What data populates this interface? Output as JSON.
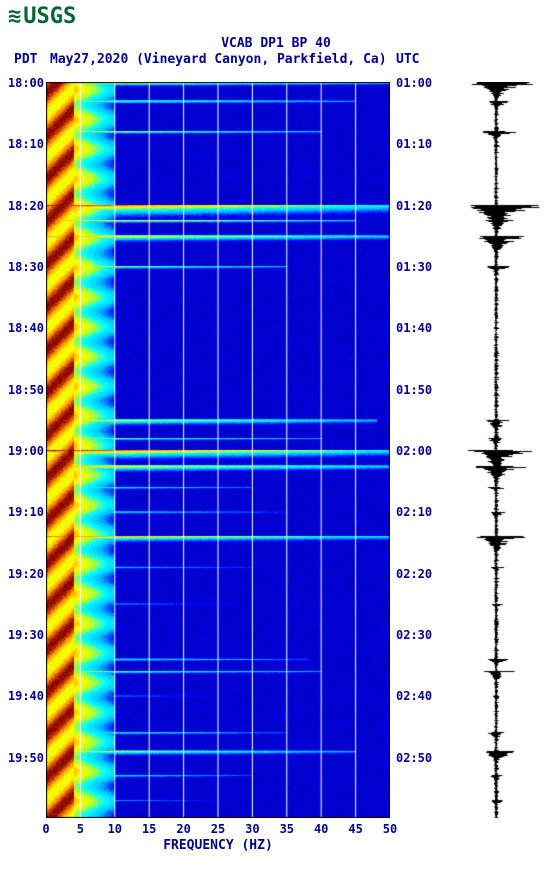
{
  "logo_text": "USGS",
  "title_line1": "VCAB DP1 BP 40",
  "subtitle": {
    "tz_left": "PDT",
    "date_loc": "May27,2020 (Vineyard Canyon, Parkfield, Ca)",
    "tz_right": "UTC"
  },
  "y_left_ticks": [
    "18:00",
    "18:10",
    "18:20",
    "18:30",
    "18:40",
    "18:50",
    "19:00",
    "19:10",
    "19:20",
    "19:30",
    "19:40",
    "19:50"
  ],
  "y_right_ticks": [
    "01:00",
    "01:10",
    "01:20",
    "01:30",
    "01:40",
    "01:50",
    "02:00",
    "02:10",
    "02:20",
    "02:30",
    "02:40",
    "02:50"
  ],
  "x_ticks": [
    "0",
    "5",
    "10",
    "15",
    "20",
    "25",
    "30",
    "35",
    "40",
    "45",
    "50"
  ],
  "x_label": "FREQUENCY (HZ)",
  "spectrogram": {
    "type": "spectrogram-heatmap",
    "freq_min_hz": 0,
    "freq_max_hz": 50,
    "time_start_pdt": "18:00",
    "time_end_pdt": "20:00",
    "grid_freqs_hz": [
      5,
      10,
      15,
      20,
      25,
      30,
      35,
      40,
      45
    ],
    "background_color": "#00008b",
    "colormap_stops": [
      {
        "v": 0.0,
        "c": "#00008b"
      },
      {
        "v": 0.2,
        "c": "#0000ff"
      },
      {
        "v": 0.35,
        "c": "#00bfff"
      },
      {
        "v": 0.5,
        "c": "#00ffff"
      },
      {
        "v": 0.6,
        "c": "#adff2f"
      },
      {
        "v": 0.72,
        "c": "#ffff00"
      },
      {
        "v": 0.85,
        "c": "#ff8c00"
      },
      {
        "v": 1.0,
        "c": "#8b0000"
      }
    ],
    "low_freq_band": {
      "freq_range_hz": [
        0,
        4
      ],
      "intensity": 0.95,
      "note": "persistent high energy band (red/orange) across full time range"
    },
    "mid_taper": {
      "freq_range_hz": [
        4,
        10
      ],
      "intensity_start": 0.7,
      "intensity_end": 0.3,
      "note": "yellow-cyan taper"
    },
    "broadband_events": [
      {
        "t_min": 0.0051,
        "width_min": 0.6,
        "max_intensity": 0.95,
        "freq_extent_hz": 50
      },
      {
        "t_min": 3.0,
        "width_min": 0.5,
        "max_intensity": 0.8,
        "freq_extent_hz": 45
      },
      {
        "t_min": 8.0,
        "width_min": 0.5,
        "max_intensity": 0.75,
        "freq_extent_hz": 40
      },
      {
        "t_min": 20.0,
        "width_min": 2.0,
        "max_intensity": 1.0,
        "freq_extent_hz": 50
      },
      {
        "t_min": 22.5,
        "width_min": 0.5,
        "max_intensity": 0.8,
        "freq_extent_hz": 45
      },
      {
        "t_min": 25.0,
        "width_min": 1.0,
        "max_intensity": 0.95,
        "freq_extent_hz": 50
      },
      {
        "t_min": 30.0,
        "width_min": 0.6,
        "max_intensity": 0.7,
        "freq_extent_hz": 35
      },
      {
        "t_min": 55.0,
        "width_min": 1.0,
        "max_intensity": 0.85,
        "freq_extent_hz": 48
      },
      {
        "t_min": 58.0,
        "width_min": 0.5,
        "max_intensity": 0.7,
        "freq_extent_hz": 40
      },
      {
        "t_min": 60.0,
        "width_min": 1.5,
        "max_intensity": 0.98,
        "freq_extent_hz": 50
      },
      {
        "t_min": 62.5,
        "width_min": 1.0,
        "max_intensity": 0.95,
        "freq_extent_hz": 50
      },
      {
        "t_min": 66.0,
        "width_min": 0.5,
        "max_intensity": 0.6,
        "freq_extent_hz": 30
      },
      {
        "t_min": 70.0,
        "width_min": 0.5,
        "max_intensity": 0.6,
        "freq_extent_hz": 35
      },
      {
        "t_min": 74.0,
        "width_min": 1.0,
        "max_intensity": 0.9,
        "freq_extent_hz": 50
      },
      {
        "t_min": 79.0,
        "width_min": 0.5,
        "max_intensity": 0.55,
        "freq_extent_hz": 30
      },
      {
        "t_min": 85.0,
        "width_min": 0.4,
        "max_intensity": 0.5,
        "freq_extent_hz": 28
      },
      {
        "t_min": 94.0,
        "width_min": 0.5,
        "max_intensity": 0.65,
        "freq_extent_hz": 38
      },
      {
        "t_min": 96.0,
        "width_min": 0.5,
        "max_intensity": 0.7,
        "freq_extent_hz": 40
      },
      {
        "t_min": 100.0,
        "width_min": 0.4,
        "max_intensity": 0.5,
        "freq_extent_hz": 25
      },
      {
        "t_min": 106.0,
        "width_min": 0.5,
        "max_intensity": 0.6,
        "freq_extent_hz": 35
      },
      {
        "t_min": 109.0,
        "width_min": 0.8,
        "max_intensity": 0.8,
        "freq_extent_hz": 45
      },
      {
        "t_min": 113.0,
        "width_min": 0.5,
        "max_intensity": 0.55,
        "freq_extent_hz": 30
      },
      {
        "t_min": 117.0,
        "width_min": 0.4,
        "max_intensity": 0.5,
        "freq_extent_hz": 25
      }
    ],
    "time_span_minutes": 120
  },
  "waveform": {
    "type": "seismogram",
    "color": "#000000",
    "time_span_minutes": 120,
    "background_color": "#ffffff",
    "baseline_amplitude": 0.05,
    "events": [
      {
        "t_min": 0.0051,
        "peak_amp": 0.75,
        "dur_min": 2.0
      },
      {
        "t_min": 3.0,
        "peak_amp": 0.4,
        "dur_min": 1.0
      },
      {
        "t_min": 8.0,
        "peak_amp": 0.45,
        "dur_min": 1.2
      },
      {
        "t_min": 20.0,
        "peak_amp": 1.0,
        "dur_min": 3.0
      },
      {
        "t_min": 22.5,
        "peak_amp": 0.4,
        "dur_min": 1.0
      },
      {
        "t_min": 25.0,
        "peak_amp": 0.7,
        "dur_min": 2.0
      },
      {
        "t_min": 30.0,
        "peak_amp": 0.3,
        "dur_min": 1.0
      },
      {
        "t_min": 55.0,
        "peak_amp": 0.4,
        "dur_min": 1.5
      },
      {
        "t_min": 58.0,
        "peak_amp": 0.3,
        "dur_min": 1.0
      },
      {
        "t_min": 60.0,
        "peak_amp": 0.8,
        "dur_min": 2.5
      },
      {
        "t_min": 62.5,
        "peak_amp": 0.7,
        "dur_min": 2.0
      },
      {
        "t_min": 66.0,
        "peak_amp": 0.2,
        "dur_min": 0.8
      },
      {
        "t_min": 70.0,
        "peak_amp": 0.25,
        "dur_min": 1.0
      },
      {
        "t_min": 74.0,
        "peak_amp": 0.6,
        "dur_min": 2.0
      },
      {
        "t_min": 79.0,
        "peak_amp": 0.2,
        "dur_min": 0.8
      },
      {
        "t_min": 85.0,
        "peak_amp": 0.18,
        "dur_min": 0.8
      },
      {
        "t_min": 94.0,
        "peak_amp": 0.3,
        "dur_min": 1.0
      },
      {
        "t_min": 96.0,
        "peak_amp": 0.35,
        "dur_min": 1.2
      },
      {
        "t_min": 100.0,
        "peak_amp": 0.15,
        "dur_min": 0.8
      },
      {
        "t_min": 106.0,
        "peak_amp": 0.25,
        "dur_min": 1.0
      },
      {
        "t_min": 109.0,
        "peak_amp": 0.5,
        "dur_min": 1.5
      },
      {
        "t_min": 113.0,
        "peak_amp": 0.2,
        "dur_min": 0.8
      },
      {
        "t_min": 117.0,
        "peak_amp": 0.18,
        "dur_min": 0.8
      }
    ]
  },
  "axis_color": "#00008b",
  "grid_color": "#ffffff",
  "font_family": "monospace",
  "label_fontsize_pt": 10
}
